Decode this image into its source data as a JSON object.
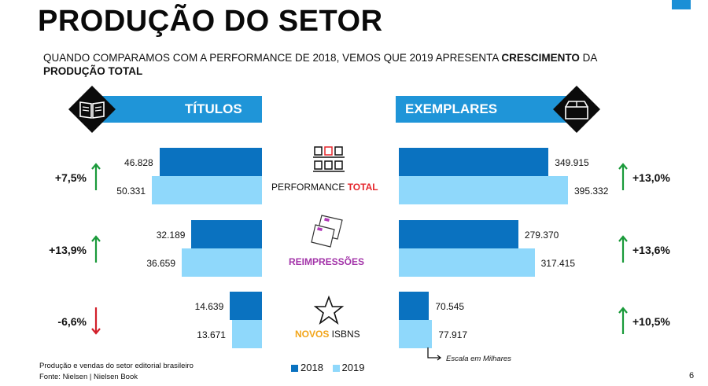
{
  "title": "PRODUÇÃO DO SETOR",
  "subtitle": {
    "part1": "QUANDO COMPARAMOS COM A PERFORMANCE DE 2018, VEMOS QUE 2019 APRESENTA ",
    "bold1": "CRESCIMENTO",
    "part2": " DA ",
    "bold2": "PRODUÇÃO TOTAL"
  },
  "panels": {
    "left": "TÍTULOS",
    "right": "EXEMPLARES"
  },
  "categories": [
    {
      "label_a": "PERFORMANCE ",
      "label_b": "TOTAL"
    },
    {
      "label_a": "",
      "label_b": "REIMPRESSÕES"
    },
    {
      "label_a": "NOVOS",
      "label_b": " ISBNS"
    }
  ],
  "chart_data": {
    "type": "bar",
    "series_names": [
      "2018",
      "2019"
    ],
    "colors": {
      "2018": "#0a72c0",
      "2019": "#8fd8fb"
    },
    "titulos": {
      "values_2018": [
        46828,
        32189,
        14639
      ],
      "values_2019": [
        50331,
        36659,
        13671
      ],
      "labels_2018": [
        "46.828",
        "32.189",
        "14.639"
      ],
      "labels_2019": [
        "50.331",
        "36.659",
        "13.671"
      ],
      "changes": [
        "+7,5%",
        "+13,9%",
        "-6,6%"
      ],
      "directions": [
        "up",
        "up",
        "down"
      ]
    },
    "exemplares": {
      "values_2018": [
        349915,
        279370,
        70545
      ],
      "values_2019": [
        395332,
        317415,
        77917
      ],
      "labels_2018": [
        "349.915",
        "279.370",
        "70.545"
      ],
      "labels_2019": [
        "395.332",
        "317.415",
        "77.917"
      ],
      "changes": [
        "+13,0%",
        "+13,6%",
        "+10,5%"
      ],
      "directions": [
        "up",
        "up",
        "up"
      ]
    }
  },
  "scale_note": "Escala em Milhares",
  "legend": {
    "a": "2018",
    "b": "2019"
  },
  "footer": {
    "line1": "Produção e vendas do setor editorial brasileiro",
    "line2": "Fonte: Nielsen | Nielsen Book"
  },
  "page_number": "6",
  "arrow_colors": {
    "up": "#1a9a3a",
    "down": "#d21f2a"
  }
}
